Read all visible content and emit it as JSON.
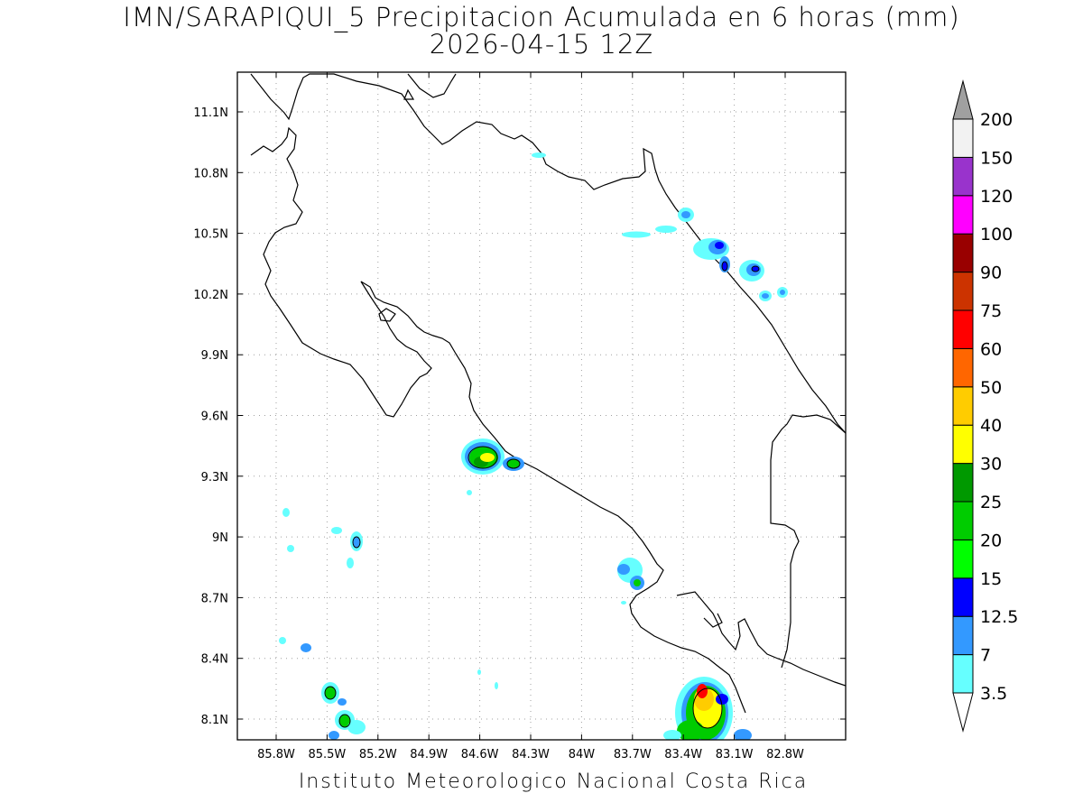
{
  "title": "IMN/SARAPIQUI_5 Precipitacion Acumulada en 6 horas (mm)",
  "subtitle": "2026-04-15 12Z",
  "credit": "Instituto Meteorologico Nacional Costa Rica",
  "map": {
    "lon_range": [
      -86.05,
      -83.05
    ],
    "lat_range": [
      8.0,
      11.3
    ],
    "lon_ticks": [
      "85.8W",
      "85.5W",
      "85.2W",
      "84.9W",
      "84.6W",
      "84.3W",
      "84W",
      "83.7W",
      "83.4W",
      "83.1W",
      "82.8W"
    ],
    "lat_ticks": [
      "11.1N",
      "10.8N",
      "10.5N",
      "10.2N",
      "9.9N",
      "9.6N",
      "9.3N",
      "9N",
      "8.7N",
      "8.4N",
      "8.1N"
    ],
    "grid": true
  },
  "colorbar": {
    "labels": [
      "3.5",
      "7",
      "12.5",
      "15",
      "20",
      "25",
      "30",
      "40",
      "50",
      "60",
      "75",
      "90",
      "100",
      "120",
      "150",
      "200"
    ],
    "colors": [
      "#ffffff",
      "#66ffff",
      "#3399ff",
      "#0000ff",
      "#00ff00",
      "#00cc00",
      "#009900",
      "#ffff00",
      "#ffcc00",
      "#ff6600",
      "#ff0000",
      "#cc3300",
      "#990000",
      "#ff00ff",
      "#9933cc",
      "#f2f2f2"
    ],
    "top_arrow_color": "#a0a0a0",
    "bottom_arrow_color": "#ffffff"
  }
}
